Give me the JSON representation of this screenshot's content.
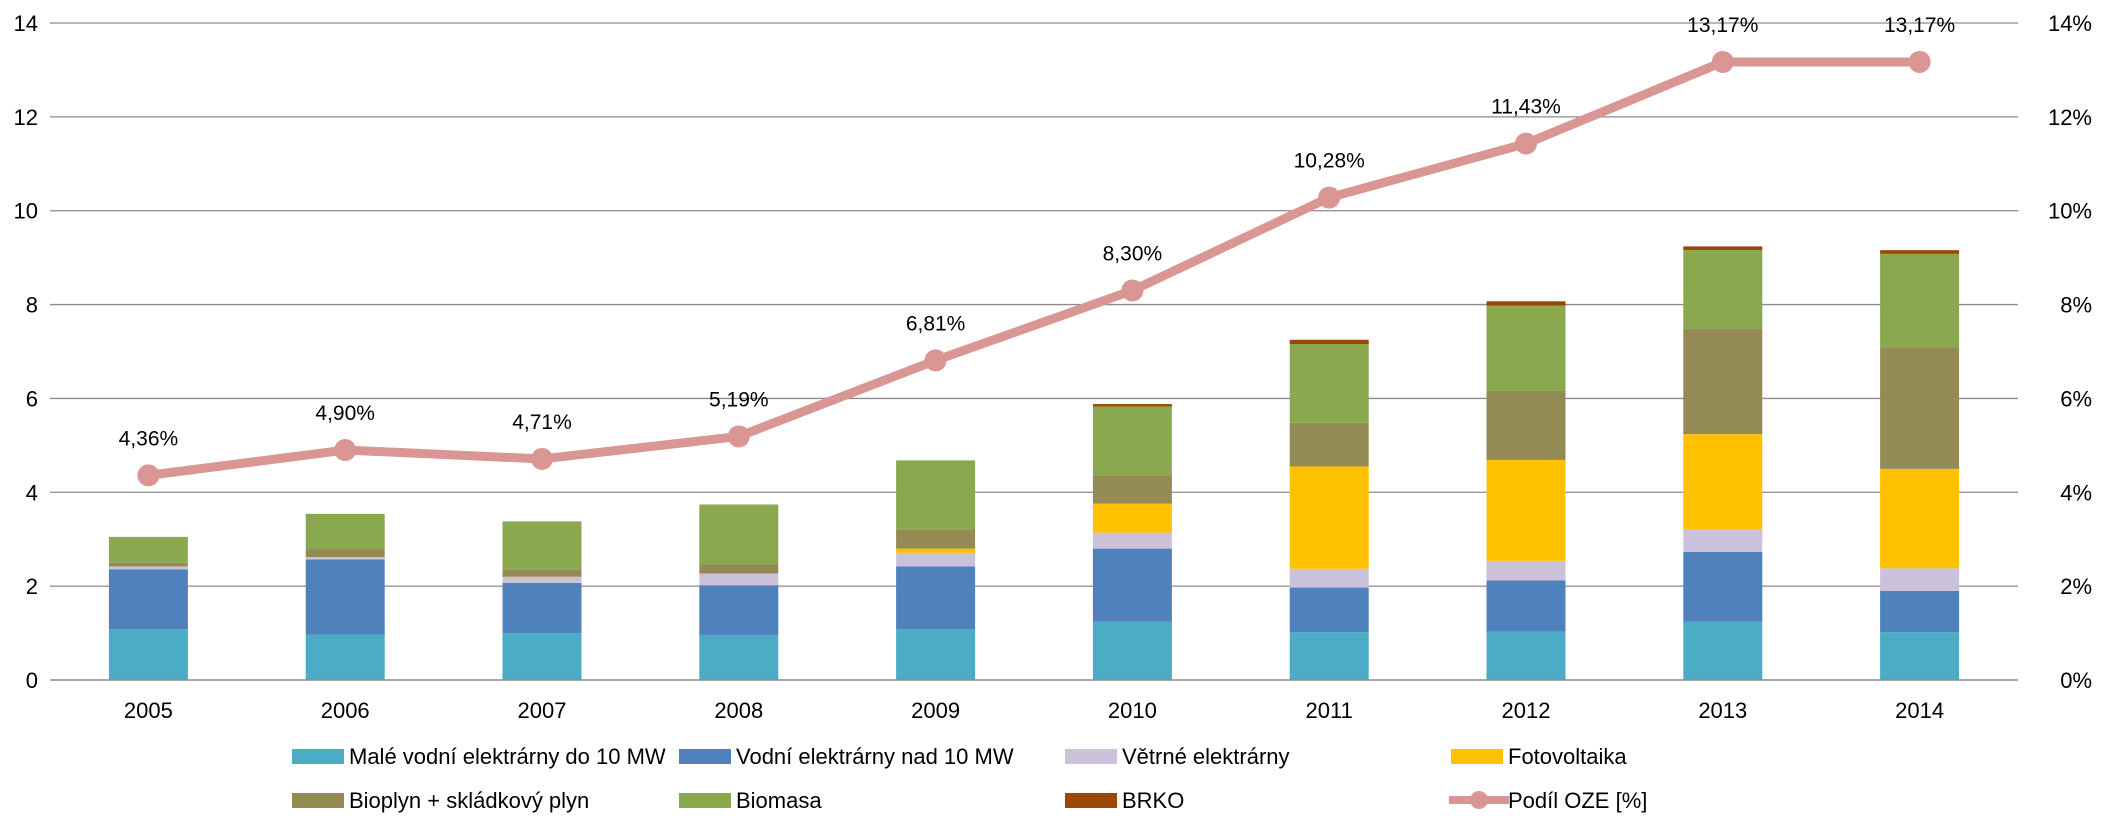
{
  "chart_data": {
    "type": "bar",
    "stacked": true,
    "title": "",
    "xlabel": "",
    "ylabel": "",
    "ylim": [
      0,
      14
    ],
    "y2lim": [
      0,
      0.14
    ],
    "y_ticks": [
      "0",
      "2",
      "4",
      "6",
      "8",
      "10",
      "12",
      "14"
    ],
    "y2_ticks": [
      "0%",
      "2%",
      "4%",
      "6%",
      "8%",
      "10%",
      "12%",
      "14%"
    ],
    "grid": "horizontal",
    "legend_position": "bottom",
    "categories": [
      "2005",
      "2006",
      "2007",
      "2008",
      "2009",
      "2010",
      "2011",
      "2012",
      "2013",
      "2014"
    ],
    "series": [
      {
        "name": "Malé vodní elektrárny do 10 MW",
        "color": "#4BACC6",
        "values": [
          1.08,
          0.97,
          1.0,
          0.96,
          1.08,
          1.24,
          1.02,
          1.03,
          1.24,
          1.02
        ]
      },
      {
        "name": "Vodní elektrárny nad 10 MW",
        "color": "#4F81BD",
        "values": [
          1.28,
          1.6,
          1.07,
          1.06,
          1.34,
          1.56,
          0.95,
          1.09,
          1.49,
          0.88
        ]
      },
      {
        "name": "Větrné elektrárny",
        "color": "#CCC1DA",
        "values": [
          0.06,
          0.05,
          0.13,
          0.24,
          0.29,
          0.34,
          0.4,
          0.42,
          0.48,
          0.48
        ]
      },
      {
        "name": "Fotovoltaika",
        "color": "#FFC000",
        "values": [
          0.0,
          0.0,
          0.0,
          0.01,
          0.09,
          0.62,
          2.18,
          2.15,
          2.03,
          2.12
        ]
      },
      {
        "name": "Bioplyn + skládkový plyn",
        "color": "#948A54",
        "values": [
          0.08,
          0.17,
          0.16,
          0.2,
          0.41,
          0.6,
          0.93,
          1.47,
          2.24,
          2.59
        ]
      },
      {
        "name": "Biomasa",
        "color": "#8AA94F",
        "values": [
          0.55,
          0.75,
          1.02,
          1.27,
          1.47,
          1.47,
          1.68,
          1.82,
          1.68,
          1.99
        ]
      },
      {
        "name": "BRKO",
        "color": "#984807",
        "values": [
          0.0,
          0.0,
          0.0,
          0.0,
          0.0,
          0.05,
          0.09,
          0.09,
          0.08,
          0.08
        ]
      }
    ],
    "line_series": {
      "name": "Podíl OZE [%]",
      "color": "#D99694",
      "axis": "secondary",
      "values": [
        0.0436,
        0.049,
        0.0471,
        0.0519,
        0.0681,
        0.083,
        0.1028,
        0.1143,
        0.1317,
        0.1317
      ],
      "labels": [
        "4,36%",
        "4,90%",
        "4,71%",
        "5,19%",
        "6,81%",
        "8,30%",
        "10,28%",
        "11,43%",
        "13,17%",
        "13,17%"
      ]
    }
  }
}
